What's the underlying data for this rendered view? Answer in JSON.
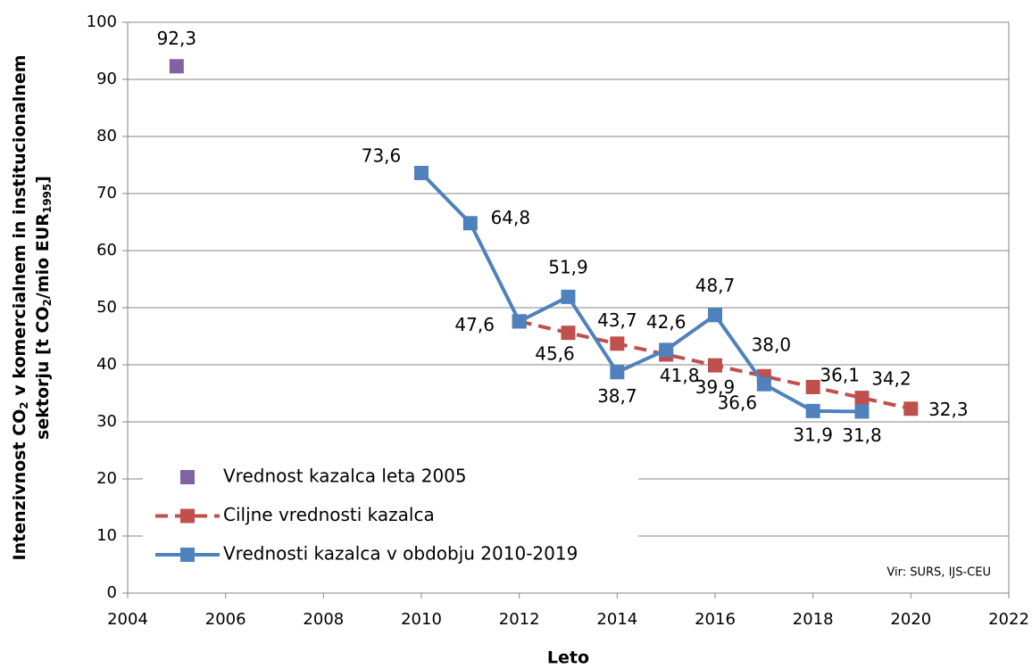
{
  "chart_data": {
    "type": "line",
    "y_label": {
      "line1": [
        "Intenzivnost CO",
        "2",
        " v komercialnem in institucionalnem"
      ],
      "line2": [
        "sektorju [t CO",
        "2",
        "/mio EUR",
        "1995",
        "]"
      ]
    },
    "x_label": "Leto",
    "source": "Vir: SURS, IJS-CEU",
    "xlim": [
      2004,
      2022
    ],
    "xticks": [
      2004,
      2006,
      2008,
      2010,
      2012,
      2014,
      2016,
      2018,
      2020,
      2022
    ],
    "ylim": [
      0,
      100
    ],
    "yticks": [
      0,
      10,
      20,
      30,
      40,
      50,
      60,
      70,
      80,
      90,
      100
    ],
    "grid": true,
    "legend": "lower left",
    "series": [
      {
        "name": "Vrednost kazalca leta 2005",
        "color": "#8064a2",
        "style": "marker",
        "x": [
          2005
        ],
        "values": [
          92.3
        ],
        "value_labels": [
          "92,3"
        ]
      },
      {
        "name": "Ciljne vrednosti kazalca",
        "color": "#c0504d",
        "style": "dashed",
        "x": [
          2012,
          2013,
          2014,
          2015,
          2016,
          2017,
          2018,
          2019,
          2020
        ],
        "values": [
          47.6,
          45.6,
          43.7,
          41.8,
          39.9,
          38.0,
          36.1,
          34.2,
          32.3
        ],
        "value_labels": [
          null,
          "45,6",
          "43,7",
          "41,8",
          "39,9",
          "38,0",
          "36,1",
          "34,2",
          "32,3"
        ]
      },
      {
        "name": "Vrednosti kazalca v obdobju 2010-2019",
        "color": "#4f81bd",
        "style": "solid",
        "x": [
          2010,
          2011,
          2012,
          2013,
          2014,
          2015,
          2016,
          2017,
          2018,
          2019
        ],
        "values": [
          73.6,
          64.8,
          47.6,
          51.9,
          38.7,
          42.6,
          48.7,
          36.6,
          31.9,
          31.8
        ],
        "value_labels": [
          "73,6",
          "64,8",
          "47,6",
          "51,9",
          "38,7",
          "42,6",
          "48,7",
          "36,6",
          "31,9",
          "31,8"
        ]
      }
    ]
  }
}
